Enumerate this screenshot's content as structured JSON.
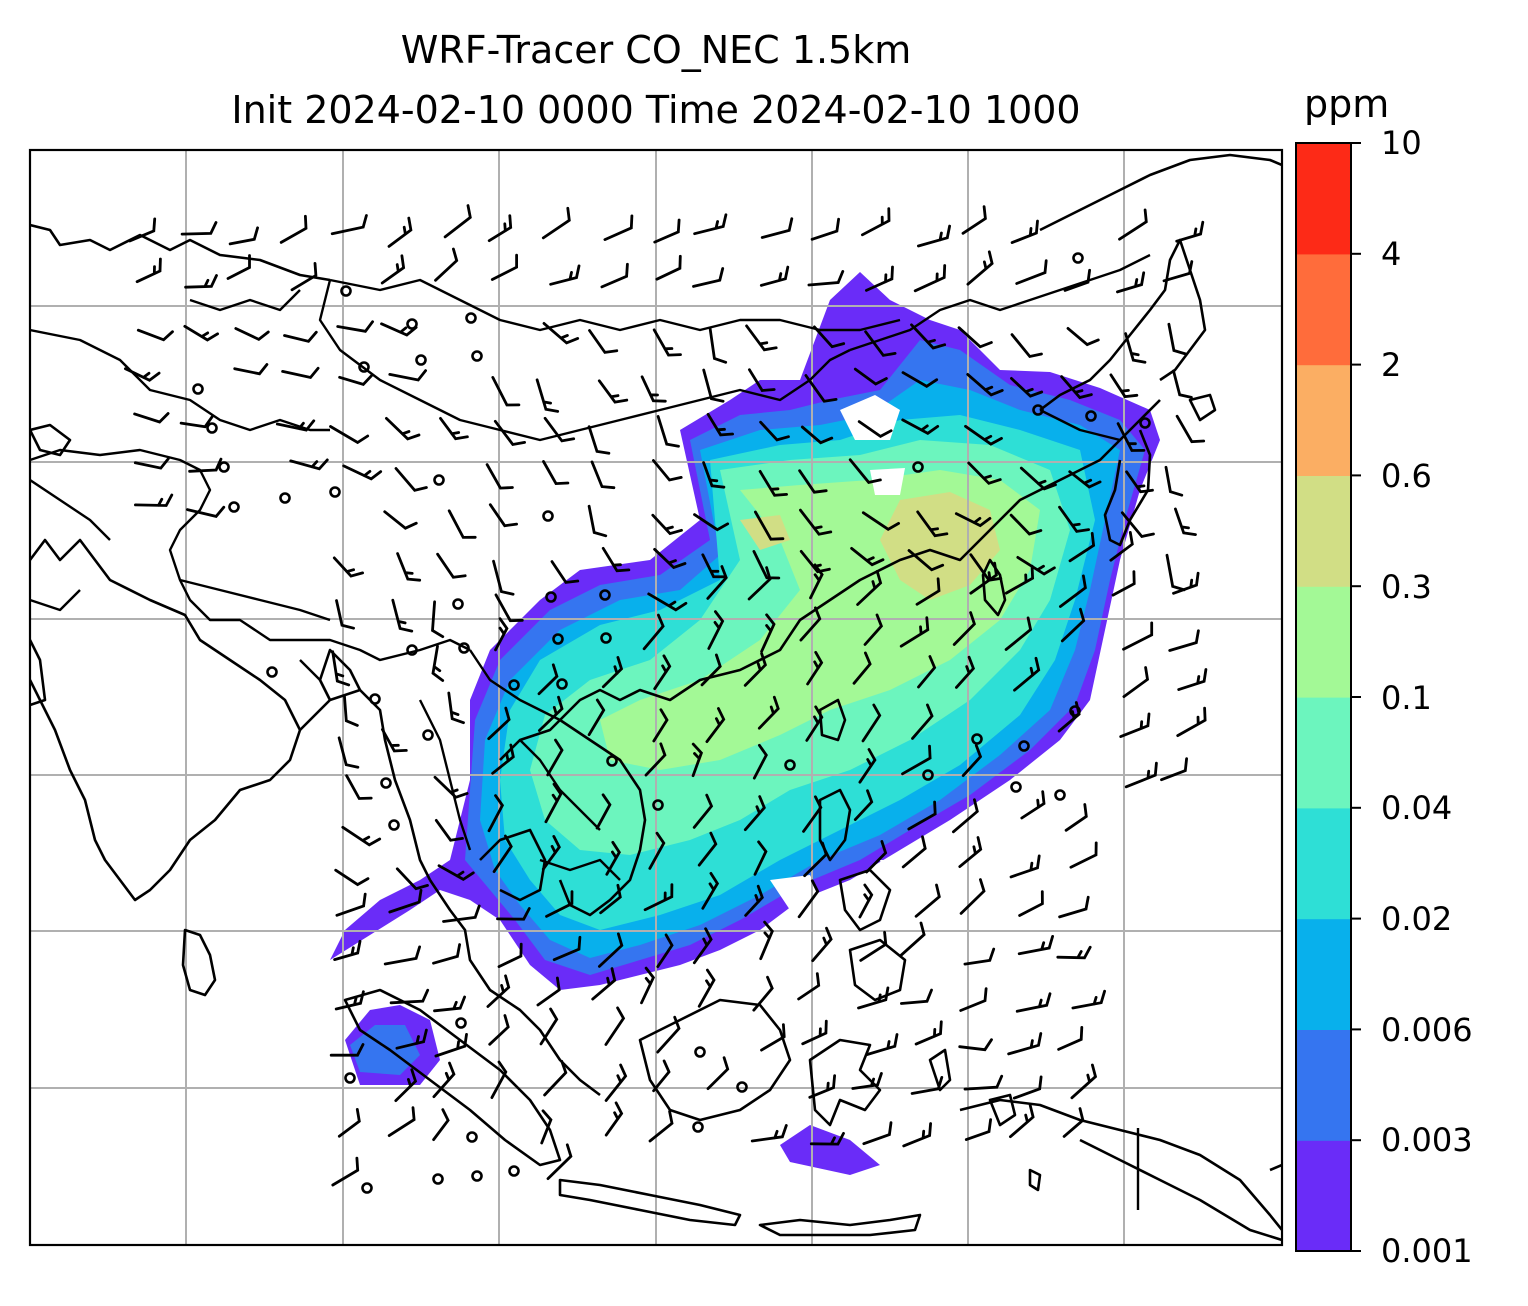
{
  "title": {
    "line1": "WRF-Tracer CO_NEC 1.5km",
    "line2": "Init 2024-02-10 0000 Time 2024-02-10 1000"
  },
  "colorbar": {
    "unit": "ppm",
    "levels": [
      "0.001",
      "0.003",
      "0.006",
      "0.02",
      "0.04",
      "0.1",
      "0.3",
      "0.6",
      "2",
      "4",
      "10"
    ],
    "colors": [
      "#6a2cf8",
      "#3575f0",
      "#08b0ec",
      "#2edfd6",
      "#6cf5be",
      "#a3f996",
      "#d1de85",
      "#fbae63",
      "#ff6c3b",
      "#fd2a17"
    ]
  },
  "map": {
    "background": "#ffffff",
    "grid_color": "#b0b0b0",
    "coastline_color": "#000000",
    "feature_icons": [
      "coastline",
      "country-border",
      "wind-barb",
      "calm-wind-circle",
      "gridline"
    ]
  }
}
